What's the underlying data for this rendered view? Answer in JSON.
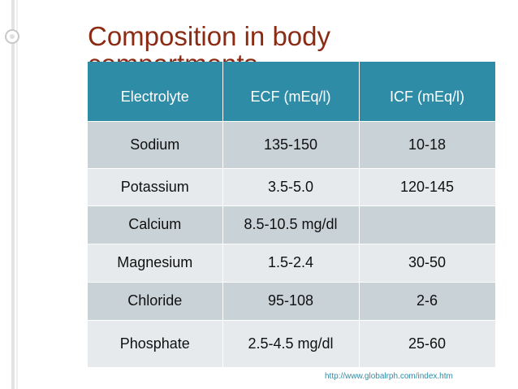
{
  "slide": {
    "title": "Composition in body compartments",
    "source": "http://www.globalrph.com/index.htm"
  },
  "table": {
    "headers": [
      "Electrolyte",
      "ECF (mEq/l)",
      "ICF (mEq/l)"
    ],
    "rows": [
      [
        "Sodium",
        "135-150",
        "10-18"
      ],
      [
        "Potassium",
        "3.5-5.0",
        "120-145"
      ],
      [
        "Calcium",
        "8.5-10.5 mg/dl",
        ""
      ],
      [
        "Magnesium",
        "1.5-2.4",
        "30-50"
      ],
      [
        "Chloride",
        "95-108",
        "2-6"
      ],
      [
        "Phosphate",
        "2.5-4.5 mg/dl",
        "25-60"
      ]
    ]
  }
}
